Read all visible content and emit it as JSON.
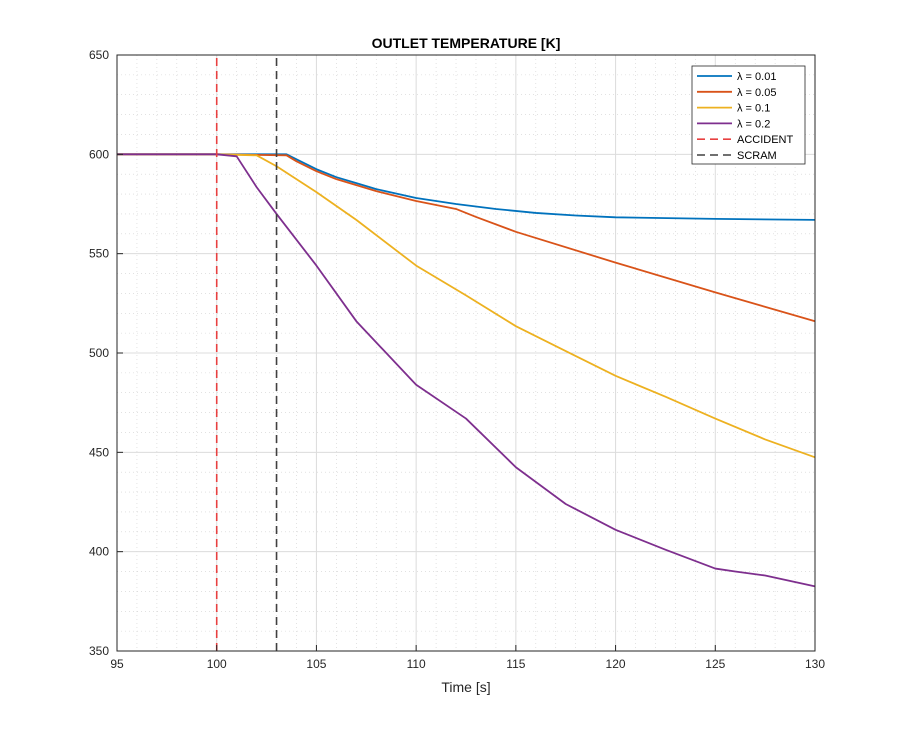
{
  "chart_data": {
    "type": "line",
    "title": "OUTLET TEMPERATURE [K]",
    "xlabel": "Time [s]",
    "ylabel": "",
    "xlim": [
      95,
      130
    ],
    "ylim": [
      350,
      650
    ],
    "x_ticks": [
      95,
      100,
      105,
      110,
      115,
      120,
      125,
      130
    ],
    "y_ticks": [
      350,
      400,
      450,
      500,
      550,
      600,
      650
    ],
    "grid": true,
    "minor_grid": true,
    "legend_position": "top-right",
    "series": [
      {
        "name": "λ = 0.01",
        "color": "#0072BD",
        "style": "solid",
        "x": [
          95,
          100,
          103.5,
          104,
          105,
          106,
          107,
          108,
          110,
          112,
          114,
          116,
          118,
          120,
          125,
          130
        ],
        "y": [
          600,
          600,
          600,
          597.5,
          592.5,
          588.5,
          585.5,
          582.5,
          578,
          575,
          572.5,
          570.5,
          569.2,
          568.3,
          567.5,
          567
        ]
      },
      {
        "name": "λ = 0.05",
        "color": "#D95319",
        "style": "solid",
        "x": [
          95,
          100,
          103.5,
          104,
          105,
          106,
          107,
          108,
          110,
          112,
          113,
          115,
          120,
          125,
          130
        ],
        "y": [
          600,
          600,
          599.5,
          596.5,
          591.5,
          587.5,
          584.5,
          581.5,
          576.5,
          572.5,
          568.5,
          561,
          545.5,
          530.5,
          516
        ]
      },
      {
        "name": "λ = 0.1",
        "color": "#EDB120",
        "style": "solid",
        "x": [
          95,
          100,
          102,
          103,
          105,
          107,
          110,
          112.5,
          115,
          117.5,
          120,
          122.5,
          125,
          127.5,
          130
        ],
        "y": [
          600,
          600,
          599.5,
          594,
          581,
          567,
          544,
          529,
          513.5,
          501,
          488.5,
          478,
          467,
          456.5,
          447.5
        ]
      },
      {
        "name": "λ = 0.2",
        "color": "#7E2F8E",
        "style": "solid",
        "x": [
          95,
          100,
          101,
          102,
          103,
          105,
          107,
          110,
          112.5,
          115,
          117.5,
          120,
          122.5,
          125,
          126,
          127.5,
          130
        ],
        "y": [
          600,
          600,
          599,
          583.5,
          570,
          544,
          516,
          484,
          467,
          442.5,
          424,
          411,
          401,
          391.5,
          390,
          388,
          382.5
        ]
      },
      {
        "name": "ACCIDENT",
        "color": "#E84040",
        "style": "dashed",
        "x": [
          100,
          100
        ],
        "y": [
          350,
          650
        ]
      },
      {
        "name": "SCRAM",
        "color": "#404040",
        "style": "dashed",
        "x": [
          103,
          103
        ],
        "y": [
          350,
          650
        ]
      }
    ]
  }
}
